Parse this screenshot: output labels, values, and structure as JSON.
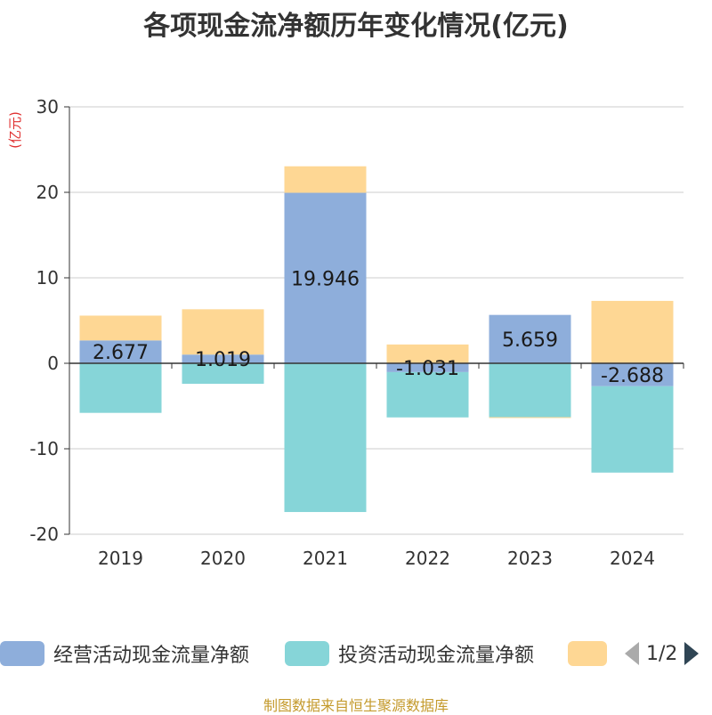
{
  "title": "各项现金流净额历年变化情况(亿元)",
  "footer": "制图数据来自恒生聚源数据库",
  "legend_pager": "1/2",
  "colors": {
    "operating": "#8eaedb",
    "investing": "#86d5d8",
    "financing": "#fed794"
  },
  "chart_data": {
    "type": "bar",
    "stacked": true,
    "title": "各项现金流净额历年变化情况(亿元)",
    "ylabel": "(亿元)",
    "xlabel": "",
    "ylim": [
      -20,
      30
    ],
    "yticks": [
      -20,
      -10,
      0,
      10,
      20,
      30
    ],
    "grid": true,
    "legend_position": "bottom",
    "categories": [
      "2019",
      "2020",
      "2021",
      "2022",
      "2023",
      "2024"
    ],
    "series": [
      {
        "name": "经营活动现金流量净额",
        "values": [
          2.677,
          1.019,
          19.946,
          -1.031,
          5.659,
          -2.688
        ],
        "labels": [
          "2.677",
          "1.019",
          "19.946",
          "-1.031",
          "5.659",
          "-2.688"
        ]
      },
      {
        "name": "投资活动现金流量净额",
        "values": [
          -5.8,
          -2.4,
          -17.4,
          -5.3,
          -6.3,
          -10.1
        ]
      },
      {
        "name": "",
        "values": [
          2.9,
          5.3,
          3.1,
          2.2,
          -0.1,
          7.3
        ]
      }
    ]
  }
}
